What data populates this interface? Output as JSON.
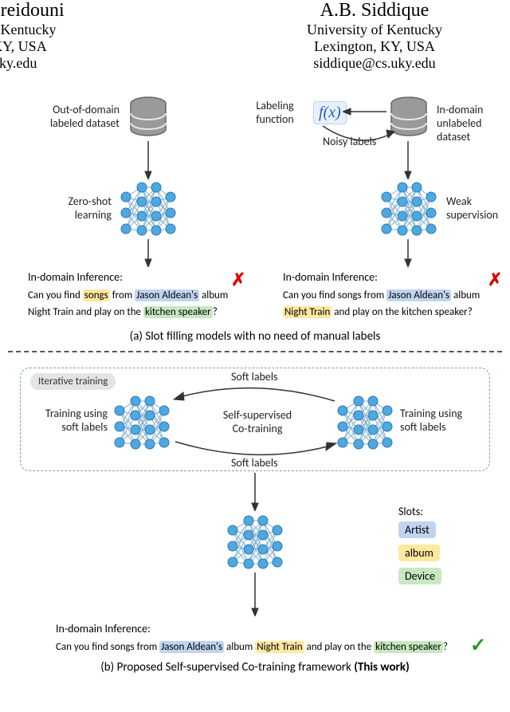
{
  "authors": {
    "left": {
      "name": "ereidouni",
      "aff": "f Kentucky",
      "loc": "KY, USA",
      "email": "uky.edu"
    },
    "right": {
      "name": "A.B. Siddique",
      "aff": "University of Kentucky",
      "loc": "Lexington, KY, USA",
      "email": "siddique@cs.uky.edu"
    }
  },
  "section_a": {
    "out_domain_label": "Out-of-domain\nlabeled dataset",
    "in_domain_label": "In-domain\nunlabeled dataset",
    "zero_shot": "Zero-shot\nlearning",
    "weak_sup": "Weak\nsupervision",
    "labeling_fn": "Labeling\nfunction",
    "fx": "f(x)",
    "noisy": "Noisy labels",
    "inference_title": "In-domain Inference:",
    "inf_left_parts": {
      "p1": "Can you find ",
      "p2": "songs",
      "p3": " from ",
      "p4": "Jason Aldean's",
      "p5": " album",
      "p6": "Night Train and play on the ",
      "p7": "kitchen speaker",
      "p8": "?"
    },
    "inf_right_parts": {
      "p1": "Can you find songs from ",
      "p2": "Jason Aldean's",
      "p3": " album",
      "p4": "Night Train",
      "p5": " and play on the kitchen speaker?"
    },
    "caption": "(a) Slot filling models with no need of manual labels"
  },
  "section_b": {
    "iter_tag": "Iterative training",
    "soft_top": "Soft labels",
    "soft_bot": "Soft labels",
    "train_left": "Training using\nsoft labels",
    "train_right": "Training using\nsoft labels",
    "cotrain": "Self-supervised\nCo-training",
    "inference_title": "In-domain Inference:",
    "inf_parts": {
      "p1": "Can you find songs from ",
      "p2": "Jason Aldean's",
      "p3": " album  ",
      "p4": "Night Train",
      "p5": "  and play on the ",
      "p6": "kitchen speaker",
      "p7": "?"
    },
    "slots_title": "Slots:",
    "slot_artist": "Artist",
    "slot_album": "album",
    "slot_device": "Device",
    "caption": "(b) Proposed Self-supervised Co-training framework (This work)"
  },
  "colors": {
    "node": "#4fa8e0",
    "node_stroke": "#2b7ab0",
    "db_fill": "#9a9a9a",
    "db_stroke": "#666",
    "db_line": "#e8e8e8",
    "artist_bg": "#c0d4f0",
    "album_bg": "#ffe8a0",
    "device_bg": "#c8e8c0"
  }
}
